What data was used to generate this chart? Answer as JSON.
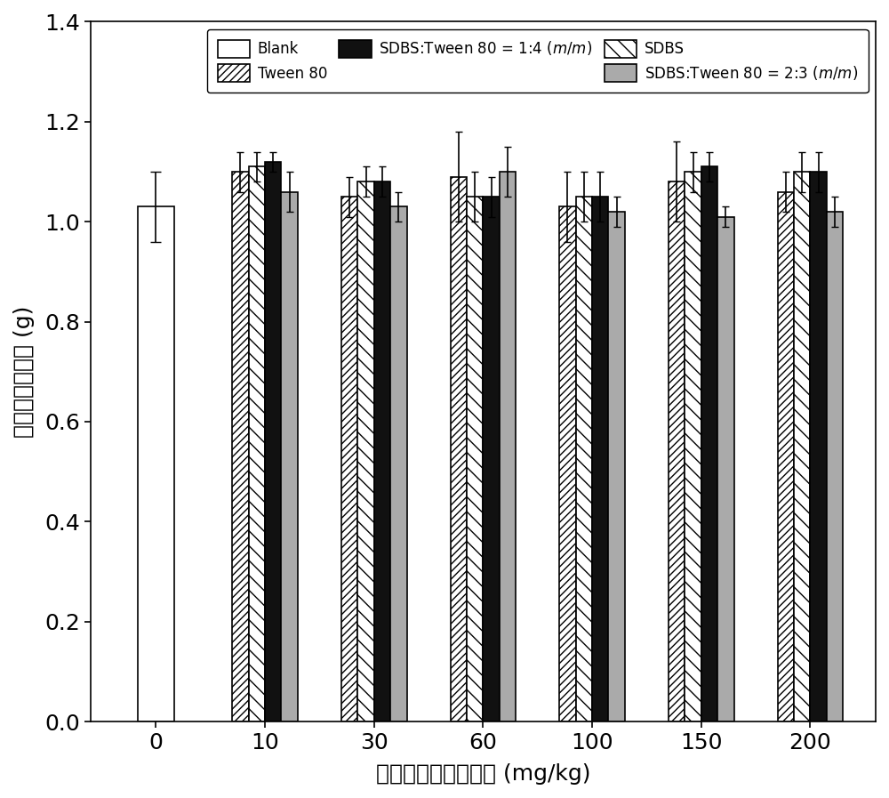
{
  "title": "",
  "xlabel": "投加表面活性剂剂量 (mg/kg)",
  "ylabel": "黑麦草茎叶干重 (g)",
  "ylim": [
    0.0,
    1.4
  ],
  "yticks": [
    0.0,
    0.2,
    0.4,
    0.6,
    0.8,
    1.0,
    1.2,
    1.4
  ],
  "xtick_labels": [
    "0",
    "10",
    "30",
    "60",
    "100",
    "150",
    "200"
  ],
  "values": {
    "Blank": [
      1.03,
      null,
      null,
      null,
      null,
      null,
      null
    ],
    "Tween80": [
      null,
      1.1,
      1.05,
      1.09,
      1.03,
      1.08,
      1.06
    ],
    "SDBS": [
      null,
      1.11,
      1.08,
      1.05,
      1.05,
      1.1,
      1.1
    ],
    "SDBS_1_4": [
      null,
      1.12,
      1.08,
      1.05,
      1.05,
      1.11,
      1.1
    ],
    "SDBS_2_3": [
      null,
      1.06,
      1.03,
      1.1,
      1.02,
      1.01,
      1.02
    ]
  },
  "errors": {
    "Blank": [
      0.07,
      null,
      null,
      null,
      null,
      null,
      null
    ],
    "Tween80": [
      null,
      0.04,
      0.04,
      0.09,
      0.07,
      0.08,
      0.04
    ],
    "SDBS": [
      null,
      0.03,
      0.03,
      0.05,
      0.05,
      0.04,
      0.04
    ],
    "SDBS_1_4": [
      null,
      0.02,
      0.03,
      0.04,
      0.05,
      0.03,
      0.04
    ],
    "SDBS_2_3": [
      null,
      0.04,
      0.03,
      0.05,
      0.03,
      0.02,
      0.03
    ]
  },
  "bar_width": 0.15,
  "background_color": "#ffffff",
  "color_blank": "#ffffff",
  "color_tween80": "#ffffff",
  "color_sdbs": "#ffffff",
  "color_sdbs14": "#111111",
  "color_sdbs23": "#aaaaaa",
  "hatch_tween80": "////",
  "hatch_sdbs": "\\\\",
  "edgecolor": "#000000"
}
